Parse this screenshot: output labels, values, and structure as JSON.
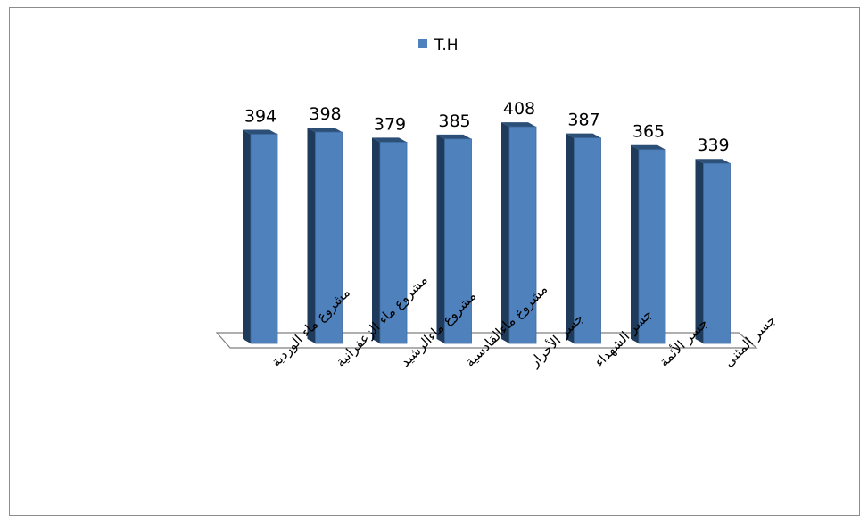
{
  "chart_data": {
    "type": "bar",
    "categories": [
      "مشروع ماء الوردية",
      "مشروع ماء الزعفرانية",
      "مشروع ماءالرشيد",
      "مشروع ماءالقادسية",
      "جسر الأحرار",
      "جسر الشهداء",
      "جسر الأئمة",
      "جسر المثنى"
    ],
    "series": [
      {
        "name": "T.H",
        "values": [
          394,
          398,
          379,
          385,
          408,
          387,
          365,
          339
        ],
        "color": "#4f81bd"
      }
    ],
    "ylim": [
      0,
      420
    ],
    "legend": "top-center",
    "grid": false,
    "data_labels": true
  }
}
